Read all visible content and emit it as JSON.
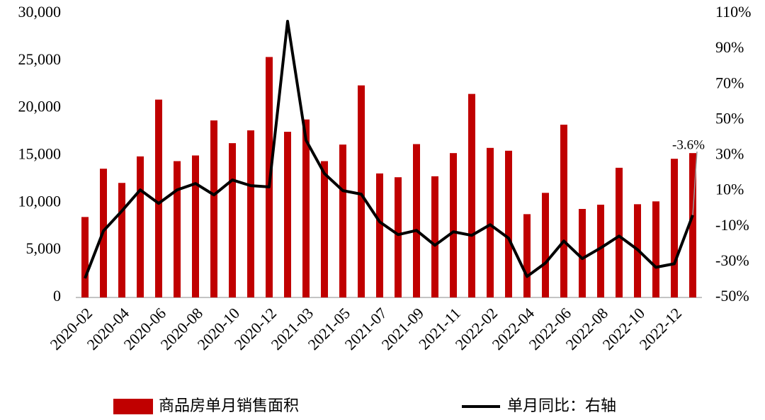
{
  "chart_data": {
    "type": "bar_line",
    "categories": [
      "2020-02",
      null,
      "2020-04",
      null,
      "2020-06",
      null,
      "2020-08",
      null,
      "2020-10",
      null,
      "2020-12",
      null,
      "2021-03",
      null,
      "2021-05",
      null,
      "2021-07",
      null,
      "2021-09",
      null,
      "2021-11",
      null,
      "2022-02",
      null,
      "2022-04",
      null,
      "2022-06",
      null,
      "2022-08",
      null,
      "2022-10",
      null,
      "2022-12",
      null
    ],
    "series": [
      {
        "name": "商品房单月销售面积",
        "type": "bar",
        "color": "#c00000",
        "values": [
          8500,
          13600,
          12100,
          14900,
          20900,
          14400,
          15000,
          18700,
          16300,
          17650,
          25400,
          17500,
          18800,
          14400,
          16150,
          22400,
          13100,
          12700,
          16200,
          12800,
          15250,
          21500,
          15800,
          15500,
          8800,
          11050,
          18250,
          9350,
          9800,
          13700,
          9850,
          10150,
          14650,
          15250
        ]
      },
      {
        "name": "单月同比：右轴",
        "type": "line",
        "axis": "y2",
        "color": "#000000",
        "values": [
          -39.2,
          -12.5,
          -1.3,
          10.6,
          3.0,
          10.6,
          14.2,
          7.8,
          16.2,
          13.0,
          12.3,
          105.6,
          38.6,
          19.8,
          10.2,
          8.2,
          -7.4,
          -14.6,
          -12.2,
          -20.6,
          -13.0,
          -15.0,
          -9.0,
          -16.6,
          -38.2,
          -30.6,
          -18.2,
          -28.1,
          -22.1,
          -15.4,
          -23.0,
          -33.0,
          -31.0,
          -3.6
        ],
        "value_labels": [
          null,
          null,
          null,
          null,
          null,
          null,
          null,
          null,
          null,
          null,
          null,
          null,
          null,
          null,
          null,
          null,
          null,
          null,
          null,
          null,
          null,
          null,
          null,
          null,
          null,
          null,
          null,
          null,
          null,
          null,
          null,
          null,
          null,
          "-3.6%"
        ]
      }
    ],
    "ylim": [
      0,
      30000
    ],
    "yticks": [
      0,
      {
        "value": 5000,
        "label": "5,000"
      },
      {
        "value": 10000,
        "label": "10,000"
      },
      {
        "value": 15000,
        "label": "15,000"
      },
      {
        "value": 20000,
        "label": "20,000"
      },
      {
        "value": 25000,
        "label": "25,000"
      },
      {
        "value": 30000,
        "label": "30,000"
      }
    ],
    "y2lim": [
      -50,
      110
    ],
    "y2ticks": [
      {
        "value": -50,
        "label": "-50%"
      },
      {
        "value": -30,
        "label": "-30%"
      },
      {
        "value": -10,
        "label": "-10%"
      },
      {
        "value": 10,
        "label": "10%"
      },
      {
        "value": 30,
        "label": "30%"
      },
      {
        "value": 50,
        "label": "50%"
      },
      {
        "value": 70,
        "label": "70%"
      },
      {
        "value": 90,
        "label": "90%"
      },
      {
        "value": 110,
        "label": "110%"
      }
    ],
    "grid": false
  }
}
